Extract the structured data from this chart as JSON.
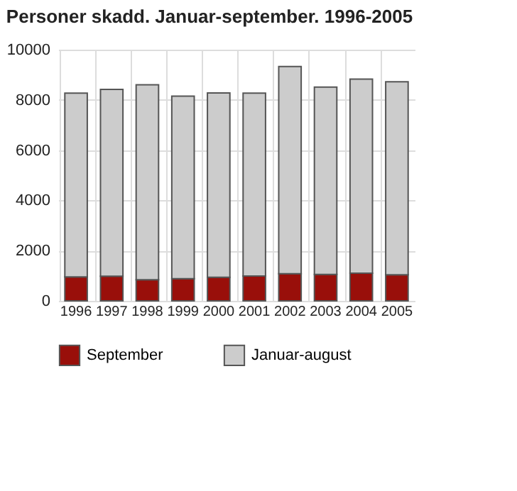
{
  "chart_data": {
    "type": "bar",
    "title": "Personer skadd. Januar-september. 1996-2005",
    "stacked": true,
    "categories": [
      "1996",
      "1997",
      "1998",
      "1999",
      "2000",
      "2001",
      "2002",
      "2003",
      "2004",
      "2005"
    ],
    "series": [
      {
        "name": "September",
        "color": "#990f0a",
        "values": [
          950,
          980,
          840,
          880,
          940,
          990,
          1080,
          1050,
          1100,
          1040
        ]
      },
      {
        "name": "Januar-august",
        "color": "#cccccc",
        "values": [
          7320,
          7440,
          7760,
          7270,
          7340,
          7280,
          8250,
          7460,
          7730,
          7680
        ]
      }
    ],
    "ylim": [
      0,
      10000
    ],
    "yticks": [
      0,
      2000,
      4000,
      6000,
      8000,
      10000
    ],
    "grid": true,
    "legend": "bottom"
  }
}
